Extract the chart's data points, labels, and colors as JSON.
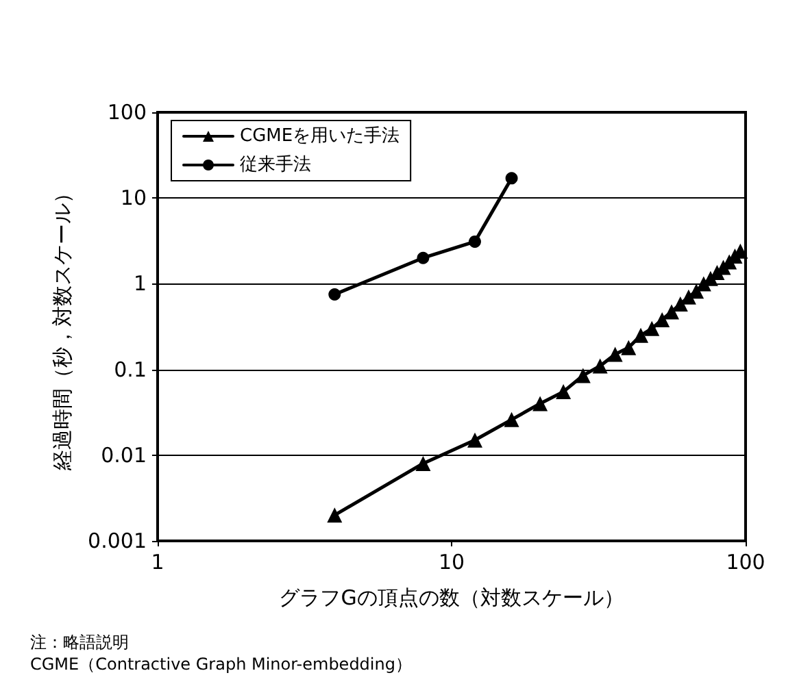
{
  "chart_data": {
    "type": "line",
    "xlabel": "グラフGの頂点の数（対数スケール）",
    "ylabel": "経過時間（秒，対数スケール）",
    "log": "xy",
    "xlim": [
      1,
      100
    ],
    "xticks": [
      1,
      10,
      100
    ],
    "ylim": [
      0.001,
      100
    ],
    "yticks": [
      0.001,
      0.01,
      0.1,
      1,
      10,
      100
    ],
    "grid": "y",
    "legend": "top left",
    "line_style": "solid",
    "series": [
      {
        "name": "CGMEを用いた手法",
        "color": "#000000",
        "marker": "triangle",
        "x": [
          4,
          8,
          12,
          16,
          20,
          24,
          28,
          32,
          36,
          40,
          44,
          48,
          52,
          56,
          60,
          64,
          68,
          72,
          76,
          80,
          84,
          88,
          92,
          96
        ],
        "values": [
          0.002,
          0.008,
          0.015,
          0.026,
          0.04,
          0.055,
          0.085,
          0.11,
          0.15,
          0.18,
          0.25,
          0.3,
          0.38,
          0.47,
          0.58,
          0.7,
          0.82,
          1.0,
          1.15,
          1.35,
          1.55,
          1.8,
          2.1,
          2.4
        ]
      },
      {
        "name": "従来手法",
        "color": "#000000",
        "marker": "circle",
        "x": [
          4,
          8,
          12,
          16
        ],
        "values": [
          0.75,
          2.0,
          3.1,
          17
        ]
      }
    ],
    "annotations": [
      "注：略語説明",
      "CGME（Contractive Graph Minor-embedding）"
    ]
  }
}
